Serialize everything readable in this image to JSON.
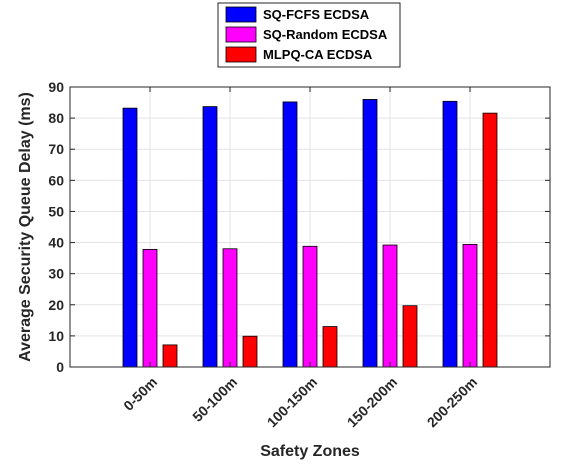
{
  "chart_data": {
    "type": "bar",
    "categories": [
      "0-50m",
      "50-100m",
      "100-150m",
      "150-200m",
      "200-250m"
    ],
    "series": [
      {
        "name": "SQ-FCFS ECDSA",
        "color": "#0000ff",
        "values": [
          83.2,
          83.7,
          85.2,
          86.0,
          85.4
        ]
      },
      {
        "name": "SQ-Random ECDSA",
        "color": "#ff00ff",
        "values": [
          37.8,
          38.0,
          38.8,
          39.2,
          39.4
        ]
      },
      {
        "name": "MLPQ-CA ECDSA",
        "color": "#ff0000",
        "values": [
          7.1,
          9.9,
          13.0,
          19.7,
          81.6
        ]
      }
    ],
    "title": "",
    "xlabel": "Safety Zones",
    "ylabel": "Average Security Queue Delay (ms)",
    "ylim": [
      0,
      90
    ],
    "yticks": [
      0,
      10,
      20,
      30,
      40,
      50,
      60,
      70,
      80,
      90
    ],
    "grid": true,
    "legend_position": "top-center-outside"
  }
}
